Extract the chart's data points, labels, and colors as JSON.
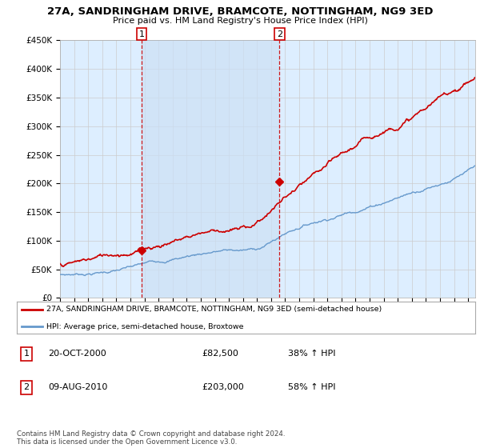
{
  "title": "27A, SANDRINGHAM DRIVE, BRAMCOTE, NOTTINGHAM, NG9 3ED",
  "subtitle": "Price paid vs. HM Land Registry's House Price Index (HPI)",
  "ylabel_ticks": [
    "£0",
    "£50K",
    "£100K",
    "£150K",
    "£200K",
    "£250K",
    "£300K",
    "£350K",
    "£400K",
    "£450K"
  ],
  "ytick_values": [
    0,
    50000,
    100000,
    150000,
    200000,
    250000,
    300000,
    350000,
    400000,
    450000
  ],
  "ylim": [
    0,
    450000
  ],
  "xlim_start": 1995.0,
  "xlim_end": 2024.5,
  "sale1_x": 2000.8,
  "sale1_y": 82500,
  "sale2_x": 2010.6,
  "sale2_y": 203000,
  "red_line_color": "#cc0000",
  "blue_line_color": "#6699cc",
  "vline_color": "#cc0000",
  "grid_color": "#cccccc",
  "bg_color": "#ddeeff",
  "shade_color": "#cce0f5",
  "legend_label_red": "27A, SANDRINGHAM DRIVE, BRAMCOTE, NOTTINGHAM, NG9 3ED (semi-detached house)",
  "legend_label_blue": "HPI: Average price, semi-detached house, Broxtowe",
  "table_row1": [
    "1",
    "20-OCT-2000",
    "£82,500",
    "38% ↑ HPI"
  ],
  "table_row2": [
    "2",
    "09-AUG-2010",
    "£203,000",
    "58% ↑ HPI"
  ],
  "footer": "Contains HM Land Registry data © Crown copyright and database right 2024.\nThis data is licensed under the Open Government Licence v3.0."
}
